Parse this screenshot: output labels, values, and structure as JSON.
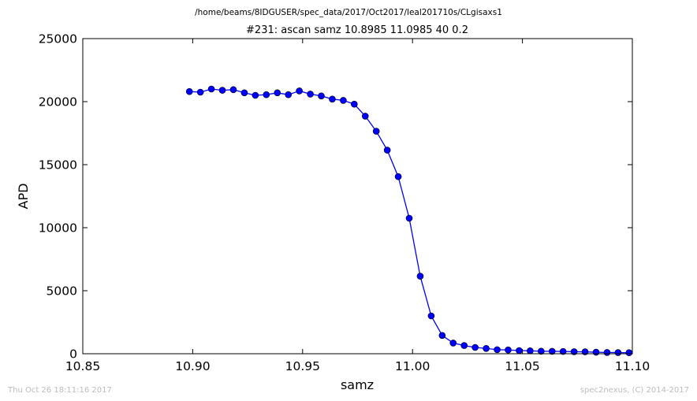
{
  "figure": {
    "supertitle": "/home/beams/8IDGUSER/spec_data/2017/Oct2017/leal201710s/CLgisaxs1",
    "footer_left": "Thu Oct 26 18:11:16 2017",
    "footer_right": "spec2nexus, (C) 2014-2017"
  },
  "chart_data": {
    "type": "line",
    "title": "#231: ascan  samz 10.8985 11.0985  40 0.2",
    "xlabel": "samz",
    "ylabel": "APD",
    "xlim": [
      10.85,
      11.1
    ],
    "ylim": [
      0,
      25000
    ],
    "xticks": [
      "10.85",
      "10.90",
      "10.95",
      "11.00",
      "11.05",
      "11.10"
    ],
    "yticks": [
      "0",
      "5000",
      "10000",
      "15000",
      "20000",
      "25000"
    ],
    "grid": false,
    "legend": "none",
    "series": [
      {
        "color": "#0000ff",
        "marker": "circle",
        "x": [
          10.8985,
          10.9035,
          10.9085,
          10.9135,
          10.9185,
          10.9235,
          10.9285,
          10.9335,
          10.9385,
          10.9435,
          10.9485,
          10.9535,
          10.9585,
          10.9635,
          10.9685,
          10.9735,
          10.9785,
          10.9835,
          10.9885,
          10.9935,
          10.9985,
          11.0035,
          11.0085,
          11.0135,
          11.0185,
          11.0235,
          11.0285,
          11.0335,
          11.0385,
          11.0435,
          11.0485,
          11.0535,
          11.0585,
          11.0635,
          11.0685,
          11.0735,
          11.0785,
          11.0835,
          11.0885,
          11.0935,
          11.0985
        ],
        "y": [
          20800,
          20750,
          21000,
          20900,
          20950,
          20700,
          20500,
          20550,
          20700,
          20550,
          20850,
          20600,
          20450,
          20200,
          20100,
          19800,
          18850,
          17650,
          16150,
          14050,
          10750,
          6150,
          3000,
          1450,
          850,
          650,
          500,
          420,
          320,
          300,
          250,
          230,
          200,
          190,
          180,
          160,
          150,
          120,
          100,
          90,
          80
        ]
      }
    ]
  }
}
